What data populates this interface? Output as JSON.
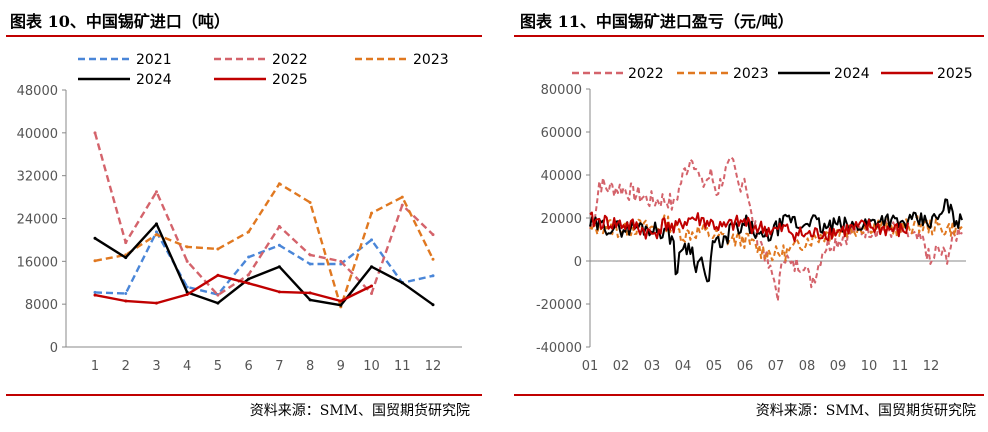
{
  "panel_left": {
    "title": "图表 10、中国锡矿进口（吨）",
    "source": "资料来源：SMM、国贸期货研究院"
  },
  "panel_right": {
    "title": "图表 11、中国锡矿进口盈亏（元/吨）",
    "source": "资料来源：SMM、国贸期货研究院"
  },
  "chart_data": [
    {
      "type": "line",
      "title": "中国锡矿进口（吨）",
      "categories": [
        "1",
        "2",
        "3",
        "4",
        "5",
        "6",
        "7",
        "8",
        "9",
        "10",
        "11",
        "12"
      ],
      "ylim": [
        0,
        48000
      ],
      "yticks": [
        0,
        8000,
        16000,
        24000,
        32000,
        40000,
        48000
      ],
      "yticklabels": [
        "0",
        "8000",
        "16000",
        "24000",
        "32000",
        "40000",
        "48000"
      ],
      "legend_placement": "top",
      "series": [
        {
          "name": "2021",
          "color": "#4a86d8",
          "dash": "dashed",
          "values": [
            10200,
            10000,
            21500,
            11200,
            9800,
            16800,
            19000,
            15500,
            15500,
            20000,
            12000,
            13300
          ]
        },
        {
          "name": "2022",
          "color": "#d4636b",
          "dash": "dashed",
          "values": [
            40000,
            19500,
            29000,
            16000,
            9700,
            13500,
            22500,
            17200,
            16000,
            10000,
            26500,
            21000
          ]
        },
        {
          "name": "2023",
          "color": "#e07820",
          "dash": "dashed",
          "values": [
            16100,
            17200,
            21000,
            18700,
            18300,
            21500,
            30500,
            27000,
            7500,
            25000,
            28000,
            16400
          ]
        },
        {
          "name": "2024",
          "color": "#000000",
          "dash": "solid",
          "values": [
            20300,
            16700,
            23000,
            10200,
            8200,
            12700,
            15000,
            8800,
            7800,
            15000,
            12000,
            7900
          ]
        },
        {
          "name": "2025",
          "color": "#c00000",
          "dash": "solid",
          "values": [
            9700,
            8600,
            8200,
            9800,
            13400,
            11900,
            10300,
            10100,
            8600,
            11400,
            null,
            null
          ]
        }
      ]
    },
    {
      "type": "line",
      "title": "中国锡矿进口盈亏（元/吨）",
      "categories": [
        "01",
        "02",
        "03",
        "04",
        "05",
        "06",
        "07",
        "08",
        "09",
        "10",
        "11",
        "12"
      ],
      "ylim": [
        -40000,
        80000
      ],
      "yticks": [
        -40000,
        -20000,
        0,
        20000,
        40000,
        60000,
        80000
      ],
      "yticklabels": [
        "-40000",
        "-20000",
        "0",
        "20000",
        "40000",
        "60000",
        "80000"
      ],
      "legend_placement": "top",
      "series": [
        {
          "name": "2022",
          "color": "#d4636b",
          "dash": "dashed",
          "anchors": [
            [
              0,
              15000
            ],
            [
              0.1,
              18000
            ],
            [
              0.25,
              30000
            ],
            [
              0.3,
              37000
            ],
            [
              0.5,
              34000
            ],
            [
              1,
              34000
            ],
            [
              1.5,
              31000
            ],
            [
              2,
              28000
            ],
            [
              2.5,
              29000
            ],
            [
              2.7,
              25000
            ],
            [
              3,
              40000
            ],
            [
              3.2,
              46000
            ],
            [
              3.3,
              50000
            ],
            [
              3.45,
              42000
            ],
            [
              3.6,
              35000
            ],
            [
              3.9,
              40000
            ],
            [
              4.1,
              32000
            ],
            [
              4.3,
              40000
            ],
            [
              4.6,
              45000
            ],
            [
              4.8,
              35000
            ],
            [
              5,
              40000
            ],
            [
              5.2,
              20000
            ],
            [
              5.45,
              10000
            ],
            [
              5.6,
              6000
            ],
            [
              5.8,
              -5000
            ],
            [
              6,
              -10000
            ],
            [
              6.05,
              -23000
            ],
            [
              6.2,
              5000
            ],
            [
              6.5,
              -3000
            ],
            [
              6.9,
              0
            ],
            [
              7.1,
              -10000
            ],
            [
              7.3,
              -5000
            ],
            [
              7.5,
              5000
            ],
            [
              7.7,
              8000
            ],
            [
              8,
              10000
            ],
            [
              8.5,
              14000
            ],
            [
              9,
              15000
            ],
            [
              9.5,
              15000
            ],
            [
              10,
              14000
            ],
            [
              10.3,
              12000
            ],
            [
              10.5,
              10000
            ],
            [
              10.8,
              8000
            ],
            [
              11,
              -3000
            ],
            [
              11.15,
              5000
            ],
            [
              11.5,
              2000
            ],
            [
              11.8,
              12000
            ],
            [
              12,
              16000
            ]
          ],
          "amp": 4500,
          "seed": 7
        },
        {
          "name": "2023",
          "color": "#e07820",
          "dash": "dashed",
          "anchors": [
            [
              0,
              14000
            ],
            [
              0.5,
              17000
            ],
            [
              1,
              14000
            ],
            [
              1.5,
              16000
            ],
            [
              2,
              15000
            ],
            [
              2.5,
              18000
            ],
            [
              3,
              12000
            ],
            [
              3.5,
              14000
            ],
            [
              4,
              12000
            ],
            [
              4.5,
              10000
            ],
            [
              5,
              10000
            ],
            [
              5.5,
              5000
            ],
            [
              6,
              3000
            ],
            [
              6.5,
              5000
            ],
            [
              7,
              10000
            ],
            [
              7.5,
              12000
            ],
            [
              8,
              14000
            ],
            [
              8.5,
              15000
            ],
            [
              9,
              17000
            ],
            [
              9.5,
              16000
            ],
            [
              10,
              15000
            ],
            [
              10.5,
              17000
            ],
            [
              11,
              16000
            ],
            [
              11.5,
              15000
            ],
            [
              12,
              16000
            ]
          ],
          "amp": 4000,
          "seed": 13
        },
        {
          "name": "2024",
          "color": "#000000",
          "dash": "solid",
          "anchors": [
            [
              0,
              17000
            ],
            [
              0.5,
              16000
            ],
            [
              1,
              15000
            ],
            [
              1.5,
              16000
            ],
            [
              2,
              15000
            ],
            [
              2.4,
              14000
            ],
            [
              2.7,
              10000
            ],
            [
              2.8,
              -12000
            ],
            [
              2.9,
              5000
            ],
            [
              3,
              8000
            ],
            [
              3.3,
              5000
            ],
            [
              3.45,
              -3000
            ],
            [
              3.6,
              2000
            ],
            [
              3.75,
              -10000
            ],
            [
              3.8,
              -15000
            ],
            [
              3.9,
              0
            ],
            [
              4.05,
              15000
            ],
            [
              4.2,
              5000
            ],
            [
              4.4,
              10000
            ],
            [
              4.6,
              18000
            ],
            [
              4.8,
              12000
            ],
            [
              5,
              18000
            ],
            [
              5.3,
              14000
            ],
            [
              5.5,
              10000
            ],
            [
              5.8,
              12000
            ],
            [
              6,
              15000
            ],
            [
              6.3,
              18000
            ],
            [
              6.5,
              20000
            ],
            [
              6.8,
              15000
            ],
            [
              7,
              20000
            ],
            [
              7.3,
              18000
            ],
            [
              7.5,
              15000
            ],
            [
              8,
              17000
            ],
            [
              8.5,
              16000
            ],
            [
              9,
              18000
            ],
            [
              9.5,
              20000
            ],
            [
              10,
              17000
            ],
            [
              10.5,
              19000
            ],
            [
              11,
              18000
            ],
            [
              11.4,
              22000
            ],
            [
              11.5,
              29000
            ],
            [
              11.7,
              20000
            ],
            [
              12,
              18000
            ]
          ],
          "amp": 3800,
          "seed": 29
        },
        {
          "name": "2025",
          "color": "#c00000",
          "dash": "solid",
          "anchors": [
            [
              0,
              19000
            ],
            [
              0.5,
              18000
            ],
            [
              1,
              17000
            ],
            [
              1.5,
              16000
            ],
            [
              2,
              12000
            ],
            [
              2.3,
              16000
            ],
            [
              2.5,
              18000
            ],
            [
              2.7,
              14000
            ],
            [
              3,
              18000
            ],
            [
              3.3,
              20000
            ],
            [
              3.6,
              19000
            ],
            [
              4,
              17000
            ],
            [
              4.3,
              15000
            ],
            [
              4.6,
              17000
            ],
            [
              5,
              18000
            ],
            [
              5.3,
              16000
            ],
            [
              5.6,
              15000
            ],
            [
              6,
              14000
            ],
            [
              6.3,
              15000
            ],
            [
              6.6,
              13000
            ],
            [
              7,
              12000
            ],
            [
              7.5,
              13000
            ],
            [
              8,
              14000
            ],
            [
              8.5,
              15000
            ],
            [
              9,
              16000
            ],
            [
              9.5,
              15000
            ],
            [
              10,
              14000
            ],
            [
              10.3,
              15000
            ]
          ],
          "amp": 3800,
          "seed": 41
        }
      ]
    }
  ]
}
